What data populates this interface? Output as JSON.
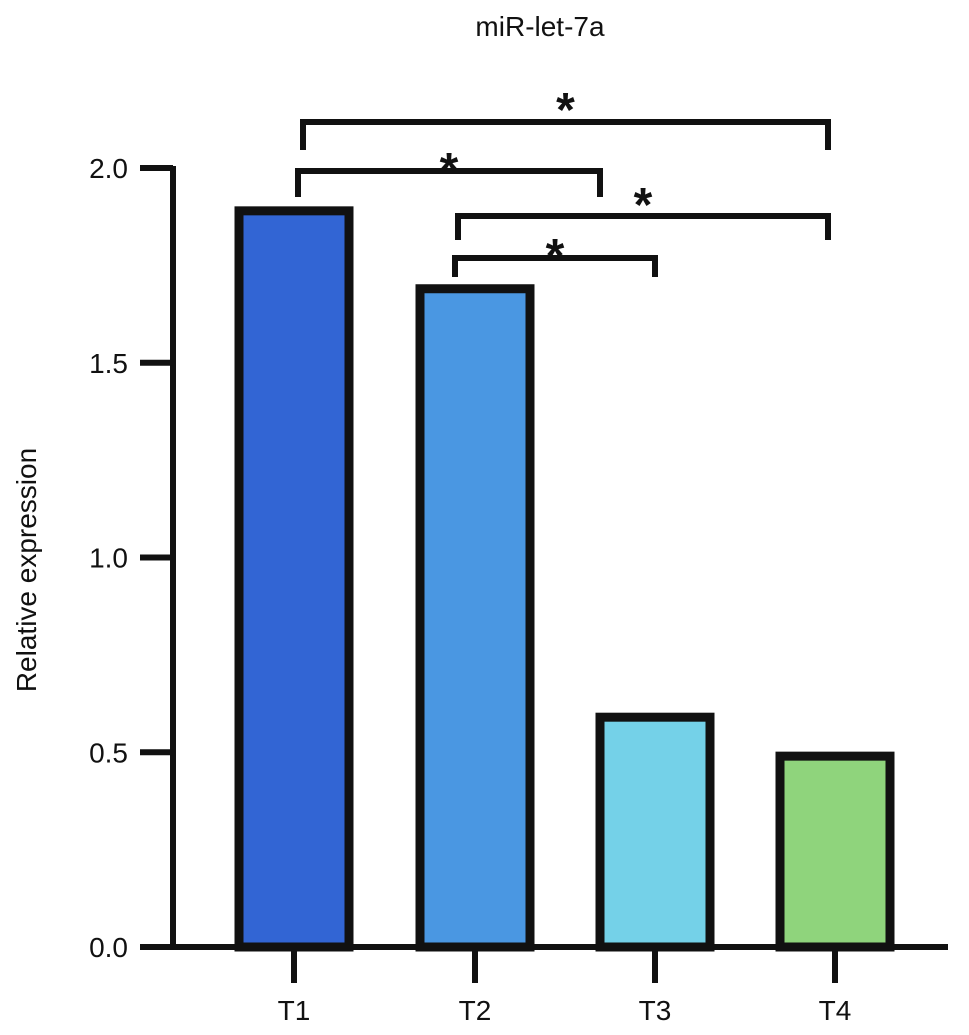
{
  "chart_data": {
    "type": "bar",
    "title": "miR-let-7a",
    "xlabel": "",
    "ylabel": "Relative expression",
    "categories": [
      "T1",
      "T2",
      "T3",
      "T4"
    ],
    "values": [
      1.89,
      1.69,
      0.59,
      0.49
    ],
    "colors": [
      "#3265d4",
      "#4a97e2",
      "#74d1e8",
      "#8fd47c"
    ],
    "ylim": [
      0,
      2.0
    ],
    "yticks": [
      0.0,
      0.5,
      1.0,
      1.5,
      2.0
    ],
    "ytick_labels": [
      "0.0",
      "0.5",
      "1.0",
      "1.5",
      "2.0"
    ],
    "grid": false,
    "annotations": [
      {
        "from": "T1",
        "to": "T4",
        "text": "*"
      },
      {
        "from": "T1",
        "to": "T3",
        "text": "*"
      },
      {
        "from": "T2",
        "to": "T4",
        "text": "*"
      },
      {
        "from": "T2",
        "to": "T3",
        "text": "*"
      }
    ]
  }
}
